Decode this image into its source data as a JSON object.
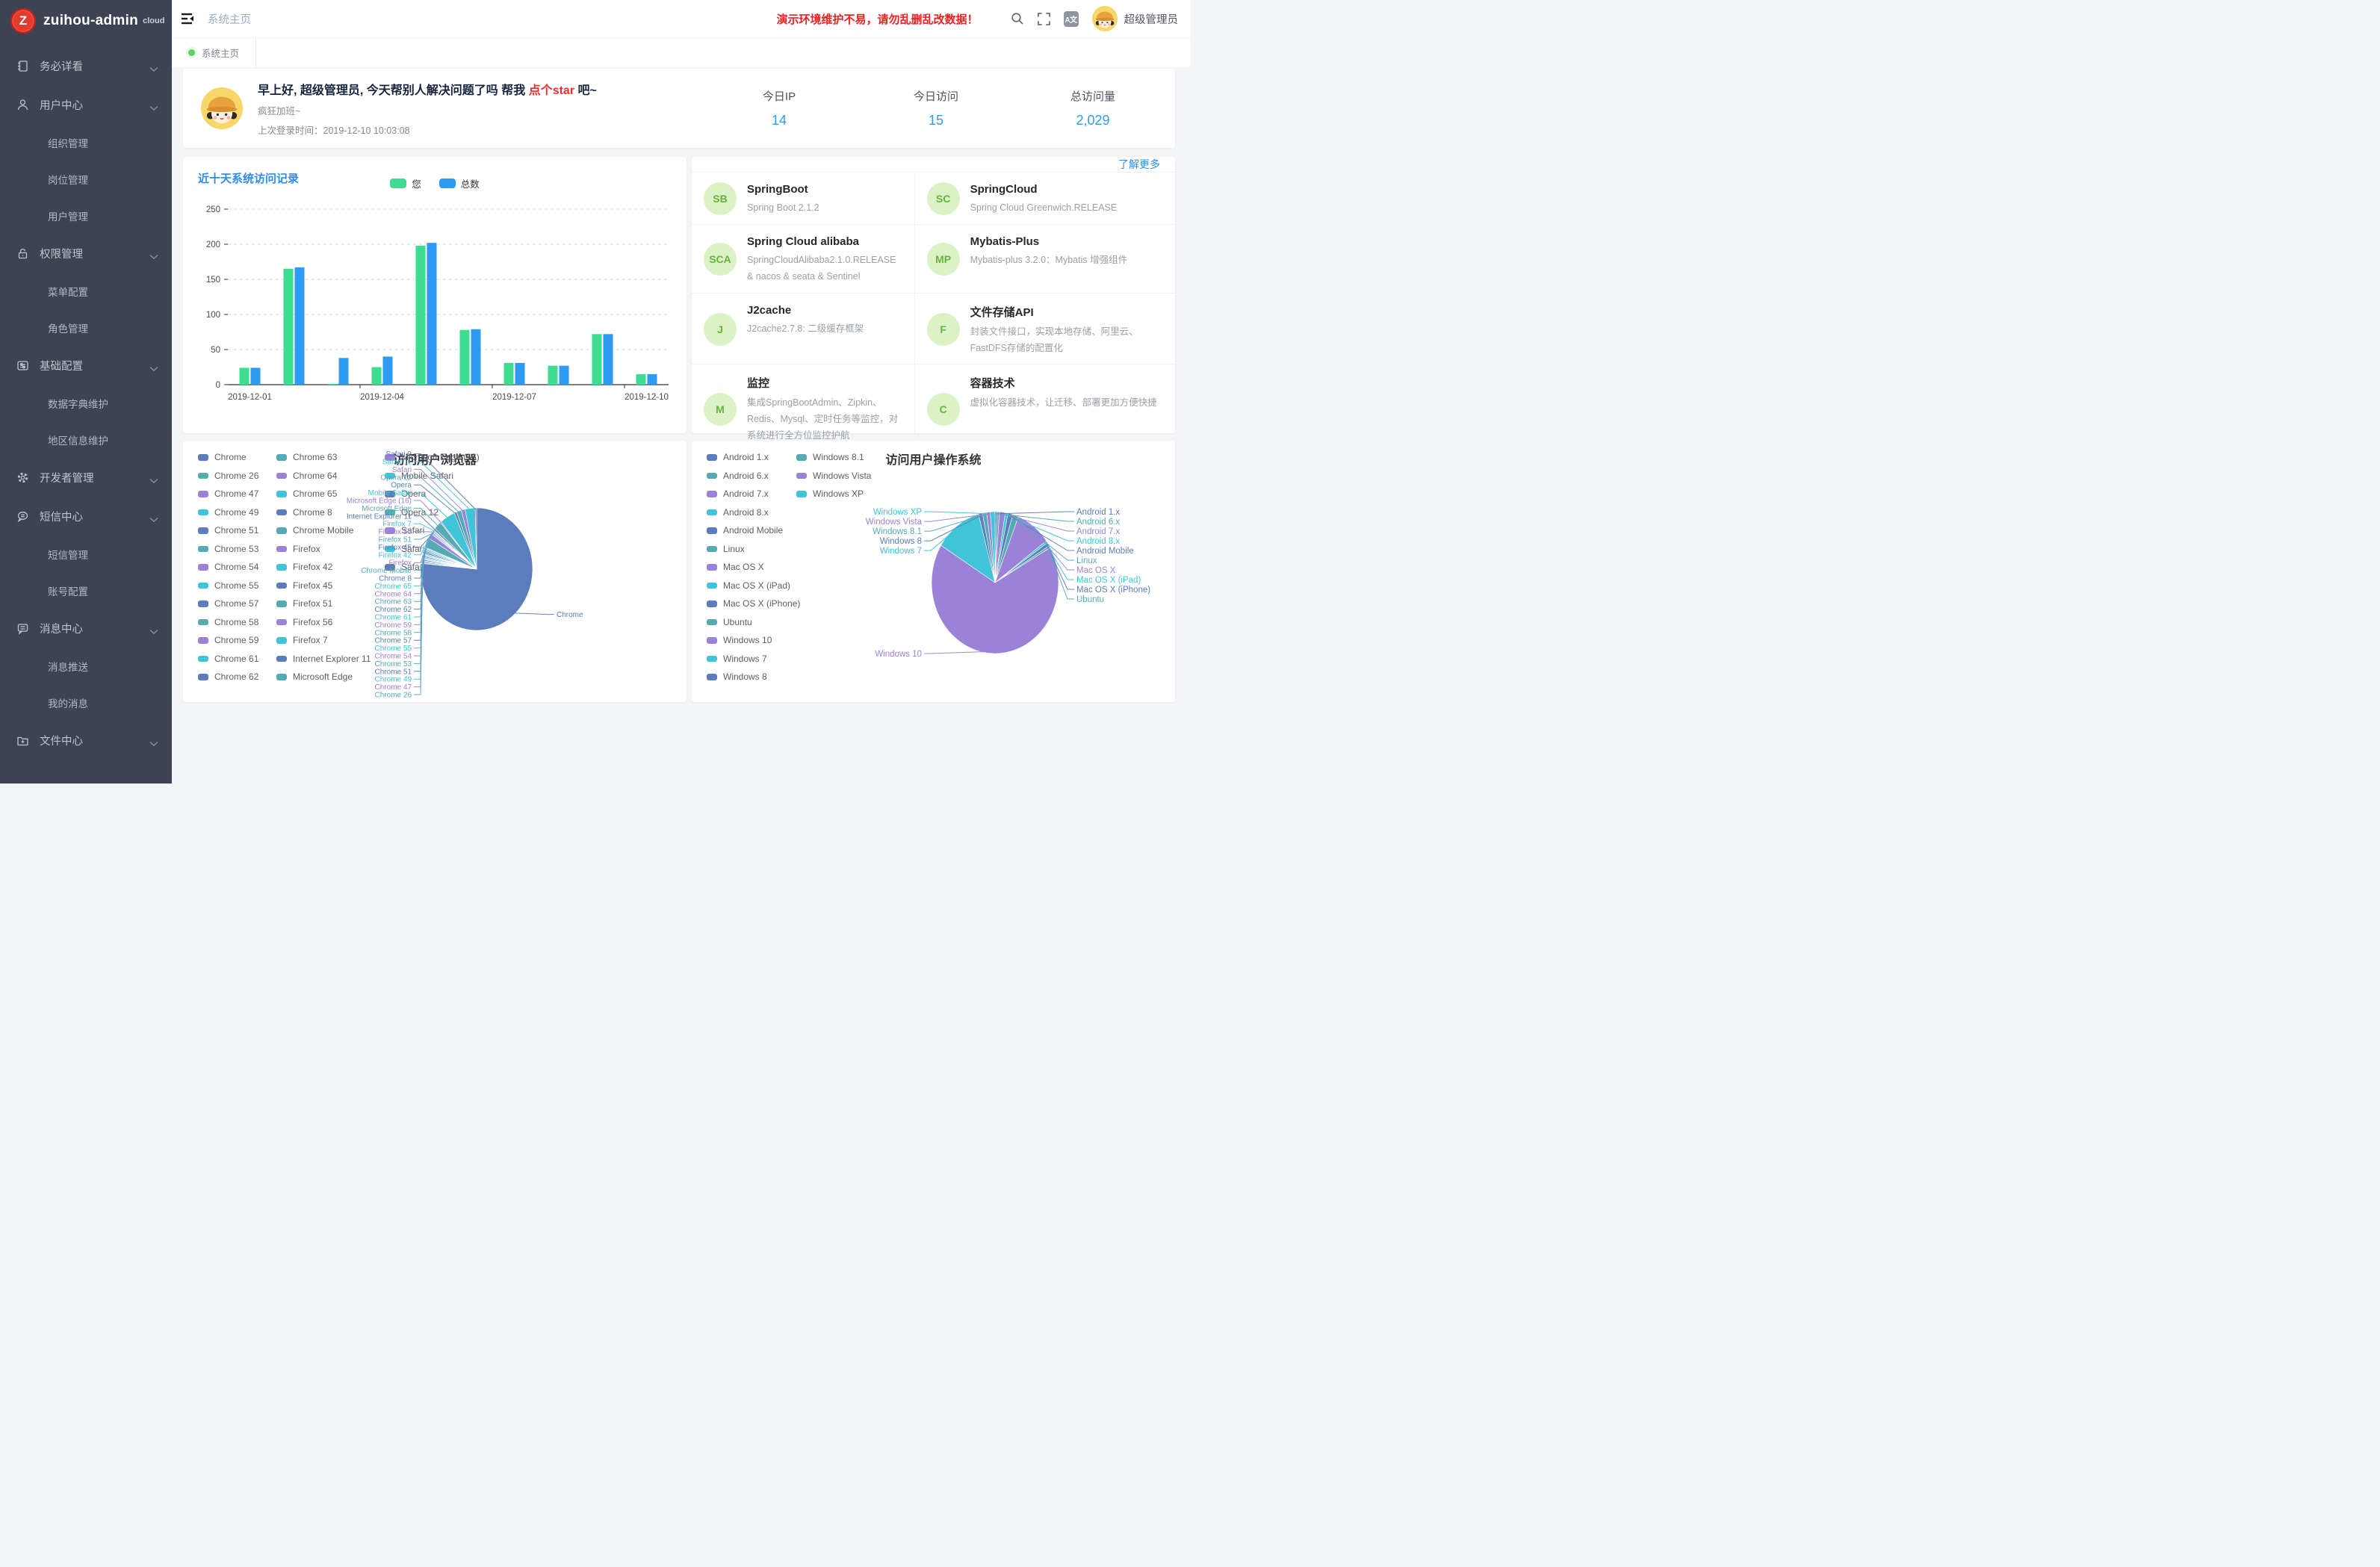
{
  "app": {
    "logo_text": "zuihou-admin",
    "logo_badge": "cloud",
    "logo_letter": "Z"
  },
  "sidebar": {
    "items": [
      {
        "label": "务必详看",
        "icon": "notebook-icon",
        "type": "group"
      },
      {
        "label": "用户中心",
        "icon": "user-icon",
        "type": "group"
      },
      {
        "label": "组织管理",
        "type": "sub"
      },
      {
        "label": "岗位管理",
        "type": "sub"
      },
      {
        "label": "用户管理",
        "type": "sub"
      },
      {
        "label": "权限管理",
        "icon": "lock-icon",
        "type": "group"
      },
      {
        "label": "菜单配置",
        "type": "sub"
      },
      {
        "label": "角色管理",
        "type": "sub"
      },
      {
        "label": "基础配置",
        "icon": "config-card-icon",
        "type": "group"
      },
      {
        "label": "数据字典维护",
        "type": "sub"
      },
      {
        "label": "地区信息维护",
        "type": "sub"
      },
      {
        "label": "开发者管理",
        "icon": "gear-icon",
        "type": "group"
      },
      {
        "label": "短信中心",
        "icon": "sms-bubble-icon",
        "type": "group"
      },
      {
        "label": "短信管理",
        "type": "sub"
      },
      {
        "label": "账号配置",
        "type": "sub"
      },
      {
        "label": "消息中心",
        "icon": "message-square-icon",
        "type": "group"
      },
      {
        "label": "消息推送",
        "type": "sub"
      },
      {
        "label": "我的消息",
        "type": "sub"
      },
      {
        "label": "文件中心",
        "icon": "folder-plus-icon",
        "type": "group"
      }
    ]
  },
  "header": {
    "breadcrumb": "系统主页",
    "warning": "演示环境维护不易，请勿乱删乱改数据！",
    "lang_icon_text": "A文",
    "username": "超级管理员"
  },
  "tabs": [
    {
      "label": "系统主页",
      "active": true
    }
  ],
  "greeting": {
    "title_prefix": "早上好, 超级管理员, 今天帮别人解决问题了吗 帮我 ",
    "title_highlight": "点个star",
    "title_suffix": " 吧~",
    "subtitle": "疯狂加班~",
    "last_login_label": "上次登录时间：",
    "last_login_time": "2019-12-10 10:03:08"
  },
  "stats": [
    {
      "label": "今日IP",
      "value": "14"
    },
    {
      "label": "今日访问",
      "value": "15"
    },
    {
      "label": "总访问量",
      "value": "2,029"
    }
  ],
  "tech_panel": {
    "more_link": "了解更多",
    "cards": [
      {
        "abbr": "SB",
        "title": "SpringBoot",
        "desc": "Spring Boot 2.1.2"
      },
      {
        "abbr": "SC",
        "title": "SpringCloud",
        "desc": "Spring Cloud Greenwich.RELEASE"
      },
      {
        "abbr": "SCA",
        "title": "Spring Cloud alibaba",
        "desc": "SpringCloudAlibaba2.1.0.RELEASE & nacos & seata & Sentinel"
      },
      {
        "abbr": "MP",
        "title": "Mybatis-Plus",
        "desc": "Mybatis-plus 3.2.0：Mybatis 增强组件"
      },
      {
        "abbr": "J",
        "title": "J2cache",
        "desc": "J2cache2.7.8: 二级缓存框架"
      },
      {
        "abbr": "F",
        "title": "文件存储API",
        "desc": "封装文件接口，实现本地存储、阿里云、FastDFS存储的配置化"
      },
      {
        "abbr": "M",
        "title": "监控",
        "desc": "集成SpringBootAdmin、Zipkin、Redis、Mysql、定时任务等监控，对系统进行全方位监控护航"
      },
      {
        "abbr": "C",
        "title": "容器技术",
        "desc": "虚拟化容器技术，让迁移、部署更加方便快捷"
      }
    ]
  },
  "colors": {
    "accent_blue": "#2d8cf0",
    "bar_green": "#3ddc91",
    "bar_blue": "#2e9bf2",
    "pie_palette": [
      "#5b7dbc",
      "#55abb4",
      "#9b82d8",
      "#3fc4d8"
    ],
    "sidebar_bg": "#3d4352",
    "warning_red": "#f21f1f",
    "tech_icon_bg": "#dbf2c6",
    "tech_icon_color": "#65b33c",
    "tab_dot_green": "#5fd364",
    "logo_red": "#e23b30",
    "axis_text": "#4a4a4a",
    "grid_line": "#d4d7dc"
  },
  "chart_data": [
    {
      "id": "visits",
      "type": "bar",
      "title": "近十天系统访问记录",
      "categories": [
        "2019-12-01",
        "2019-12-02",
        "2019-12-03",
        "2019-12-04",
        "2019-12-05",
        "2019-12-06",
        "2019-12-07",
        "2019-12-08",
        "2019-12-09",
        "2019-12-10"
      ],
      "x_tick_labels": [
        "2019-12-01",
        "2019-12-04",
        "2019-12-07",
        "2019-12-10"
      ],
      "series": [
        {
          "name": "您",
          "values": [
            24,
            165,
            1,
            25,
            198,
            78,
            31,
            27,
            72,
            15
          ]
        },
        {
          "name": "总数",
          "values": [
            24,
            167,
            38,
            40,
            202,
            79,
            31,
            27,
            72,
            15
          ]
        }
      ],
      "ylim": [
        0,
        250
      ],
      "y_ticks": [
        0,
        50,
        100,
        150,
        200,
        250
      ],
      "legend_position": "top",
      "grid": "dashed"
    },
    {
      "id": "browsers",
      "type": "pie",
      "title": "访问用户浏览器",
      "values_are_percent_estimates": true,
      "items": [
        {
          "name": "Chrome",
          "value": 76.5
        },
        {
          "name": "Chrome 26",
          "value": 0.2
        },
        {
          "name": "Chrome 47",
          "value": 0.3
        },
        {
          "name": "Chrome 49",
          "value": 0.3
        },
        {
          "name": "Chrome 51",
          "value": 0.3
        },
        {
          "name": "Chrome 53",
          "value": 0.2
        },
        {
          "name": "Chrome 54",
          "value": 0.2
        },
        {
          "name": "Chrome 55",
          "value": 0.3
        },
        {
          "name": "Chrome 57",
          "value": 0.3
        },
        {
          "name": "Chrome 58",
          "value": 0.2
        },
        {
          "name": "Chrome 59",
          "value": 0.2
        },
        {
          "name": "Chrome 61",
          "value": 0.3
        },
        {
          "name": "Chrome 62",
          "value": 0.4
        },
        {
          "name": "Chrome 63",
          "value": 0.4
        },
        {
          "name": "Chrome 64",
          "value": 0.3
        },
        {
          "name": "Chrome 65",
          "value": 0.3
        },
        {
          "name": "Chrome 8",
          "value": 0.2
        },
        {
          "name": "Chrome Mobile",
          "value": 2.6
        },
        {
          "name": "Firefox",
          "value": 1.3
        },
        {
          "name": "Firefox 42",
          "value": 0.3
        },
        {
          "name": "Firefox 45",
          "value": 0.3
        },
        {
          "name": "Firefox 51",
          "value": 0.2
        },
        {
          "name": "Firefox 56",
          "value": 0.3
        },
        {
          "name": "Firefox 7",
          "value": 0.2
        },
        {
          "name": "Internet Explorer 11",
          "value": 0.5
        },
        {
          "name": "Microsoft Edge",
          "value": 2.2
        },
        {
          "name": "Microsoft Edge (16)",
          "value": 0.3
        },
        {
          "name": "Mobile Safari",
          "value": 4.4
        },
        {
          "name": "Opera",
          "value": 0.7
        },
        {
          "name": "Opera 12",
          "value": 1.4
        },
        {
          "name": "Safari",
          "value": 1.1
        },
        {
          "name": "Safari 11",
          "value": 2.9
        },
        {
          "name": "Safari 9",
          "value": 0.4
        }
      ],
      "legend_position": "left",
      "legend_columns": 13
    },
    {
      "id": "os",
      "type": "pie",
      "title": "访问用户操作系统",
      "values_are_percent_estimates": true,
      "items": [
        {
          "name": "Android 1.x",
          "value": 0.5
        },
        {
          "name": "Android 6.x",
          "value": 0.6
        },
        {
          "name": "Android 7.x",
          "value": 1.5
        },
        {
          "name": "Android 8.x",
          "value": 0.7
        },
        {
          "name": "Android Mobile",
          "value": 1.2
        },
        {
          "name": "Linux",
          "value": 1.5
        },
        {
          "name": "Mac OS X",
          "value": 9.0
        },
        {
          "name": "Mac OS X (iPad)",
          "value": 0.5
        },
        {
          "name": "Mac OS X (iPhone)",
          "value": 0.8
        },
        {
          "name": "Ubuntu",
          "value": 0.5
        },
        {
          "name": "Windows 10",
          "value": 67.0
        },
        {
          "name": "Windows 7",
          "value": 12.0
        },
        {
          "name": "Windows 8",
          "value": 1.0
        },
        {
          "name": "Windows 8.1",
          "value": 1.1
        },
        {
          "name": "Windows Vista",
          "value": 0.9
        },
        {
          "name": "Windows XP",
          "value": 1.2
        }
      ],
      "legend_position": "left",
      "legend_columns": 13
    }
  ]
}
